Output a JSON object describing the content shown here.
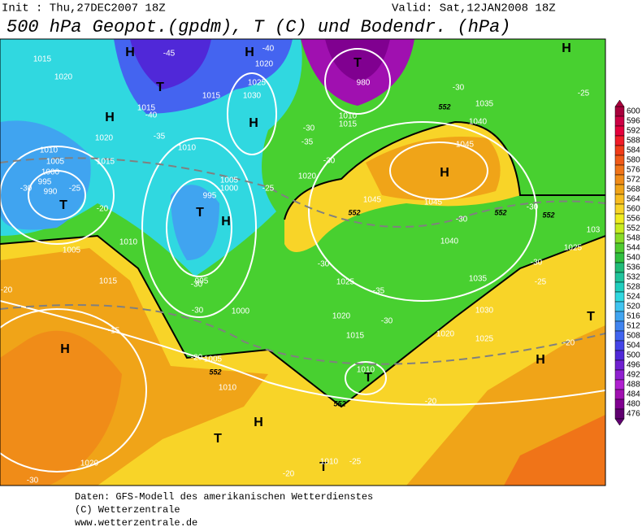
{
  "header": {
    "init": "Init : Thu,27DEC2007 18Z",
    "valid": "Valid: Sat,12JAN2008 18Z",
    "title": "500 hPa Geopot.(gpdm), T (C) und Bodendr. (hPa)"
  },
  "map": {
    "centers": [
      "H",
      "H",
      "T",
      "H",
      "T",
      "H",
      "H",
      "H",
      "T",
      "T",
      "H",
      "H",
      "H",
      "T",
      "H",
      "T",
      "T",
      "T"
    ],
    "isobars": [
      "1015",
      "1020",
      "1015",
      "1015",
      "1020",
      "1025",
      "1030",
      "980",
      "1010",
      "1015",
      "1035",
      "1040",
      "1045",
      "1020",
      "1015",
      "1010",
      "1010",
      "1005",
      "1000",
      "995",
      "990",
      "1005",
      "1000",
      "995",
      "1045",
      "1045",
      "1020",
      "1010",
      "1005",
      "1015",
      "1040",
      "1025",
      "1035",
      "995",
      "1000",
      "1020",
      "1030",
      "1025",
      "1015",
      "1020",
      "1005",
      "1010",
      "1010",
      "1020",
      "1010",
      "1025",
      "103"
    ],
    "isotherms": [
      "-45",
      "-40",
      "-40",
      "-35",
      "-30",
      "-30",
      "-35",
      "-30",
      "-25",
      "-30",
      "-25",
      "-20",
      "-30",
      "-30",
      "-30",
      "-25",
      "-30",
      "-35",
      "-30",
      "-30",
      "-30",
      "-20",
      "-15",
      "-20",
      "-20",
      "-20",
      "-20",
      "-25",
      "-30",
      "-25"
    ],
    "contours": [
      "552",
      "552",
      "552",
      "552",
      "552",
      "552"
    ]
  },
  "colorbar": {
    "labels": [
      600,
      596,
      592,
      588,
      584,
      580,
      576,
      572,
      568,
      564,
      560,
      556,
      552,
      548,
      544,
      540,
      536,
      532,
      528,
      524,
      520,
      516,
      512,
      508,
      504,
      500,
      496,
      492,
      488,
      484,
      480,
      476
    ],
    "colors": [
      "#a8003c",
      "#cc0044",
      "#e4003c",
      "#f01c28",
      "#f03c18",
      "#f05a18",
      "#f07418",
      "#f08c18",
      "#f0a418",
      "#f8bc20",
      "#f8d428",
      "#f0ec20",
      "#c8ec20",
      "#88dc28",
      "#50cc30",
      "#30c040",
      "#20bc78",
      "#20c49c",
      "#20cebe",
      "#30d8e0",
      "#40c4f0",
      "#40a4f0",
      "#4084f0",
      "#4064f0",
      "#4444e8",
      "#5028d8",
      "#7020d0",
      "#9020d0",
      "#b020d0",
      "#a010b0",
      "#800090",
      "#600070"
    ]
  },
  "footer": [
    "Daten: GFS-Modell des amerikanischen Wetterdienstes",
    "(C) Wetterzentrale",
    "www.wetterzentrale.de"
  ]
}
